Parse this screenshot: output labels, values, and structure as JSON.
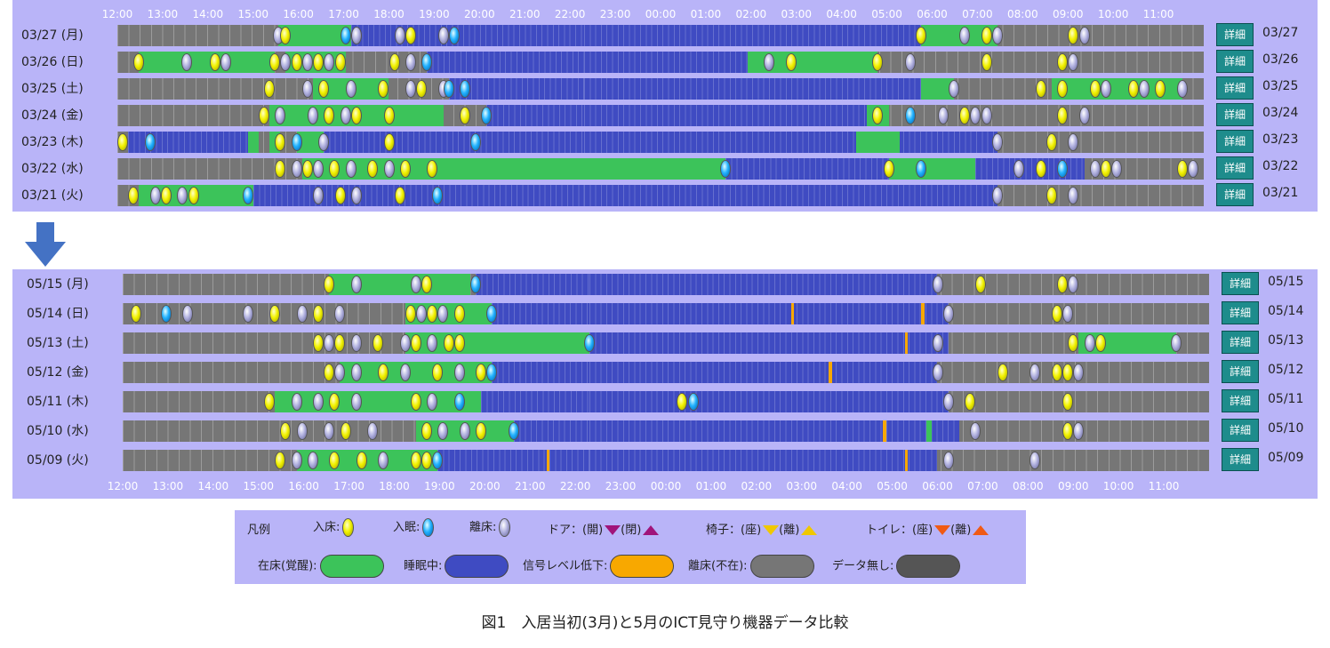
{
  "hours": [
    "12:00",
    "13:00",
    "14:00",
    "15:00",
    "16:00",
    "17:00",
    "18:00",
    "19:00",
    "20:00",
    "21:00",
    "22:00",
    "23:00",
    "00:00",
    "01:00",
    "02:00",
    "03:00",
    "04:00",
    "05:00",
    "06:00",
    "07:00",
    "08:00",
    "09:00",
    "10:00",
    "11:00"
  ],
  "detail_label": "詳細",
  "legend": {
    "title": "凡例",
    "enter": "入床:",
    "sleep": "入眠:",
    "leave": "離床:",
    "door": "ドア：(開)",
    "door_close": "(閉)",
    "chair": "椅子：(座)",
    "chair_leave": "(離)",
    "toilet": "トイレ：(座)",
    "toilet_leave": "(離)",
    "awake": "在床(覚醒):",
    "sleeping": "睡眠中:",
    "signal": "信号レベル低下:",
    "absent": "離床(不在):",
    "nodata": "データ無し:"
  },
  "caption": "図1　入居当初(3月)と5月のICT見守り機器データ比較",
  "colors": {
    "panel": "#b9b4f8",
    "awake": "#3cc35a",
    "sleep": "#3f4bc2",
    "signal": "#f8a800",
    "absent": "#767676",
    "nodata": "#555555",
    "door": "#a0147a",
    "chair": "#f0c800",
    "toilet": "#f05a14",
    "detail": "#1e8c8c",
    "arrow": "#4472c4"
  },
  "march": [
    {
      "label": "03/27 (月)",
      "date": "03/27",
      "segs": [
        [
          "g",
          0.148,
          0.215
        ],
        [
          "b",
          0.215,
          0.43
        ],
        [
          "b",
          0.43,
          0.74
        ],
        [
          "g",
          0.74,
          0.81
        ]
      ],
      "marks": [
        [
          "leave",
          0.148
        ],
        [
          "enter",
          0.155
        ],
        [
          "sleep",
          0.21
        ],
        [
          "leave",
          0.22
        ],
        [
          "leave",
          0.26
        ],
        [
          "enter",
          0.27
        ],
        [
          "leave",
          0.3
        ],
        [
          "sleep",
          0.31
        ],
        [
          "enter",
          0.74
        ],
        [
          "leave",
          0.78
        ],
        [
          "enter",
          0.8
        ],
        [
          "leave",
          0.81
        ],
        [
          "enter",
          0.88
        ],
        [
          "leave",
          0.89
        ]
      ]
    },
    {
      "label": "03/26 (日)",
      "date": "03/26",
      "segs": [
        [
          "g",
          0.02,
          0.145
        ],
        [
          "g",
          0.155,
          0.21
        ],
        [
          "b",
          0.285,
          0.43
        ],
        [
          "b",
          0.43,
          0.58
        ],
        [
          "g",
          0.58,
          0.7
        ]
      ],
      "marks": [
        [
          "enter",
          0.02
        ],
        [
          "leave",
          0.064
        ],
        [
          "enter",
          0.09
        ],
        [
          "leave",
          0.1
        ],
        [
          "enter",
          0.145
        ],
        [
          "leave",
          0.155
        ],
        [
          "enter",
          0.165
        ],
        [
          "leave",
          0.175
        ],
        [
          "enter",
          0.185
        ],
        [
          "leave",
          0.195
        ],
        [
          "enter",
          0.205
        ],
        [
          "enter",
          0.255
        ],
        [
          "leave",
          0.27
        ],
        [
          "sleep",
          0.285
        ],
        [
          "leave",
          0.6
        ],
        [
          "enter",
          0.62
        ],
        [
          "enter",
          0.7
        ],
        [
          "leave",
          0.73
        ],
        [
          "enter",
          0.8
        ],
        [
          "enter",
          0.87
        ],
        [
          "leave",
          0.88
        ]
      ]
    },
    {
      "label": "03/25 (土)",
      "date": "03/25",
      "segs": [
        [
          "g",
          0.18,
          0.25
        ],
        [
          "b",
          0.305,
          0.43
        ],
        [
          "b",
          0.43,
          0.74
        ],
        [
          "g",
          0.74,
          0.77
        ],
        [
          "g",
          0.86,
          0.98
        ]
      ],
      "marks": [
        [
          "enter",
          0.14
        ],
        [
          "leave",
          0.175
        ],
        [
          "enter",
          0.19
        ],
        [
          "leave",
          0.215
        ],
        [
          "enter",
          0.245
        ],
        [
          "leave",
          0.27
        ],
        [
          "enter",
          0.28
        ],
        [
          "leave",
          0.3
        ],
        [
          "sleep",
          0.305
        ],
        [
          "sleep",
          0.32
        ],
        [
          "leave",
          0.77
        ],
        [
          "enter",
          0.85
        ],
        [
          "enter",
          0.87
        ],
        [
          "enter",
          0.9
        ],
        [
          "leave",
          0.91
        ],
        [
          "enter",
          0.935
        ],
        [
          "leave",
          0.945
        ],
        [
          "enter",
          0.96
        ],
        [
          "leave",
          0.98
        ]
      ]
    },
    {
      "label": "03/24 (金)",
      "date": "03/24",
      "segs": [
        [
          "g",
          0.14,
          0.3
        ],
        [
          "b",
          0.34,
          0.43
        ],
        [
          "b",
          0.43,
          0.69
        ],
        [
          "g",
          0.69,
          0.71
        ]
      ],
      "marks": [
        [
          "enter",
          0.135
        ],
        [
          "leave",
          0.15
        ],
        [
          "leave",
          0.18
        ],
        [
          "enter",
          0.195
        ],
        [
          "leave",
          0.21
        ],
        [
          "enter",
          0.22
        ],
        [
          "enter",
          0.25
        ],
        [
          "enter",
          0.32
        ],
        [
          "sleep",
          0.34
        ],
        [
          "enter",
          0.7
        ],
        [
          "sleep",
          0.73
        ],
        [
          "leave",
          0.76
        ],
        [
          "enter",
          0.78
        ],
        [
          "leave",
          0.79
        ],
        [
          "leave",
          0.8
        ],
        [
          "enter",
          0.87
        ],
        [
          "leave",
          0.89
        ]
      ]
    },
    {
      "label": "03/23 (木)",
      "date": "03/23",
      "segs": [
        [
          "b",
          0.01,
          0.12
        ],
        [
          "g",
          0.12,
          0.13
        ],
        [
          "g",
          0.14,
          0.15
        ],
        [
          "g",
          0.165,
          0.19
        ],
        [
          "b",
          0.19,
          0.43
        ],
        [
          "b",
          0.43,
          0.81
        ],
        [
          "g",
          0.68,
          0.72
        ]
      ],
      "marks": [
        [
          "enter",
          0.005
        ],
        [
          "sleep",
          0.03
        ],
        [
          "enter",
          0.15
        ],
        [
          "sleep",
          0.165
        ],
        [
          "leave",
          0.19
        ],
        [
          "enter",
          0.25
        ],
        [
          "sleep",
          0.33
        ],
        [
          "leave",
          0.81
        ],
        [
          "enter",
          0.86
        ],
        [
          "leave",
          0.88
        ]
      ]
    },
    {
      "label": "03/22 (水)",
      "date": "03/22",
      "segs": [
        [
          "g",
          0.17,
          0.43
        ],
        [
          "g",
          0.43,
          0.56
        ],
        [
          "b",
          0.56,
          0.71
        ],
        [
          "g",
          0.71,
          0.79
        ],
        [
          "b",
          0.79,
          0.89
        ]
      ],
      "marks": [
        [
          "enter",
          0.15
        ],
        [
          "leave",
          0.165
        ],
        [
          "enter",
          0.175
        ],
        [
          "leave",
          0.185
        ],
        [
          "enter",
          0.2
        ],
        [
          "leave",
          0.215
        ],
        [
          "enter",
          0.235
        ],
        [
          "leave",
          0.25
        ],
        [
          "enter",
          0.265
        ],
        [
          "enter",
          0.29
        ],
        [
          "sleep",
          0.56
        ],
        [
          "enter",
          0.71
        ],
        [
          "sleep",
          0.74
        ],
        [
          "leave",
          0.83
        ],
        [
          "enter",
          0.85
        ],
        [
          "sleep",
          0.87
        ],
        [
          "leave",
          0.9
        ],
        [
          "enter",
          0.91
        ],
        [
          "leave",
          0.92
        ],
        [
          "enter",
          0.98
        ],
        [
          "leave",
          0.99
        ]
      ]
    },
    {
      "label": "03/21 (火)",
      "date": "03/21",
      "segs": [
        [
          "g",
          0.02,
          0.125
        ],
        [
          "b",
          0.125,
          0.43
        ],
        [
          "b",
          0.43,
          0.81
        ]
      ],
      "marks": [
        [
          "enter",
          0.015
        ],
        [
          "leave",
          0.035
        ],
        [
          "enter",
          0.045
        ],
        [
          "leave",
          0.06
        ],
        [
          "enter",
          0.07
        ],
        [
          "sleep",
          0.12
        ],
        [
          "leave",
          0.185
        ],
        [
          "enter",
          0.205
        ],
        [
          "leave",
          0.22
        ],
        [
          "enter",
          0.26
        ],
        [
          "sleep",
          0.295
        ],
        [
          "leave",
          0.81
        ],
        [
          "enter",
          0.86
        ],
        [
          "leave",
          0.88
        ]
      ]
    }
  ],
  "may": [
    {
      "label": "05/15 (月)",
      "date": "05/15",
      "segs": [
        [
          "g",
          0.19,
          0.32
        ],
        [
          "b",
          0.325,
          0.43
        ],
        [
          "b",
          0.43,
          0.75
        ]
      ],
      "marks": [
        [
          "enter",
          0.19
        ],
        [
          "leave",
          0.215
        ],
        [
          "leave",
          0.27
        ],
        [
          "enter",
          0.28
        ],
        [
          "sleep",
          0.325
        ],
        [
          "leave",
          0.75
        ],
        [
          "enter",
          0.79
        ],
        [
          "enter",
          0.865
        ],
        [
          "leave",
          0.875
        ]
      ]
    },
    {
      "label": "05/14 (日)",
      "date": "05/14",
      "segs": [
        [
          "g",
          0.26,
          0.34
        ],
        [
          "b",
          0.34,
          0.43
        ],
        [
          "b",
          0.43,
          0.76
        ],
        [
          "o",
          0.615,
          0.618
        ],
        [
          "o",
          0.735,
          0.738
        ]
      ],
      "marks": [
        [
          "enter",
          0.012
        ],
        [
          "sleep",
          0.04
        ],
        [
          "leave",
          0.06
        ],
        [
          "leave",
          0.115
        ],
        [
          "enter",
          0.14
        ],
        [
          "leave",
          0.165
        ],
        [
          "enter",
          0.18
        ],
        [
          "leave",
          0.2
        ],
        [
          "enter",
          0.265
        ],
        [
          "leave",
          0.275
        ],
        [
          "enter",
          0.285
        ],
        [
          "leave",
          0.295
        ],
        [
          "enter",
          0.31
        ],
        [
          "sleep",
          0.34
        ],
        [
          "leave",
          0.76
        ],
        [
          "enter",
          0.86
        ],
        [
          "leave",
          0.87
        ]
      ]
    },
    {
      "label": "05/13 (土)",
      "date": "05/13",
      "segs": [
        [
          "g",
          0.26,
          0.43
        ],
        [
          "b",
          0.43,
          0.76
        ],
        [
          "o",
          0.72,
          0.723
        ],
        [
          "g",
          0.88,
          0.97
        ]
      ],
      "marks": [
        [
          "enter",
          0.18
        ],
        [
          "leave",
          0.19
        ],
        [
          "enter",
          0.2
        ],
        [
          "leave",
          0.215
        ],
        [
          "enter",
          0.235
        ],
        [
          "leave",
          0.26
        ],
        [
          "enter",
          0.27
        ],
        [
          "leave",
          0.285
        ],
        [
          "enter",
          0.3
        ],
        [
          "enter",
          0.31
        ],
        [
          "sleep",
          0.43
        ],
        [
          "leave",
          0.75
        ],
        [
          "enter",
          0.875
        ],
        [
          "leave",
          0.89
        ],
        [
          "enter",
          0.9
        ],
        [
          "leave",
          0.97
        ]
      ]
    },
    {
      "label": "05/12 (金)",
      "date": "05/12",
      "segs": [
        [
          "g",
          0.2,
          0.34
        ],
        [
          "b",
          0.34,
          0.43
        ],
        [
          "b",
          0.43,
          0.75
        ],
        [
          "o",
          0.65,
          0.653
        ]
      ],
      "marks": [
        [
          "enter",
          0.19
        ],
        [
          "leave",
          0.2
        ],
        [
          "leave",
          0.215
        ],
        [
          "enter",
          0.24
        ],
        [
          "leave",
          0.26
        ],
        [
          "enter",
          0.29
        ],
        [
          "leave",
          0.31
        ],
        [
          "enter",
          0.33
        ],
        [
          "sleep",
          0.34
        ],
        [
          "leave",
          0.75
        ],
        [
          "enter",
          0.81
        ],
        [
          "leave",
          0.84
        ],
        [
          "enter",
          0.86
        ],
        [
          "enter",
          0.87
        ],
        [
          "leave",
          0.88
        ]
      ]
    },
    {
      "label": "05/11 (木)",
      "date": "05/11",
      "segs": [
        [
          "g",
          0.14,
          0.33
        ],
        [
          "b",
          0.33,
          0.43
        ],
        [
          "b",
          0.43,
          0.76
        ]
      ],
      "marks": [
        [
          "enter",
          0.135
        ],
        [
          "leave",
          0.16
        ],
        [
          "leave",
          0.18
        ],
        [
          "enter",
          0.195
        ],
        [
          "leave",
          0.215
        ],
        [
          "enter",
          0.27
        ],
        [
          "leave",
          0.285
        ],
        [
          "sleep",
          0.31
        ],
        [
          "enter",
          0.515
        ],
        [
          "sleep",
          0.525
        ],
        [
          "leave",
          0.76
        ],
        [
          "enter",
          0.78
        ],
        [
          "enter",
          0.87
        ]
      ]
    },
    {
      "label": "05/10 (水)",
      "date": "05/10",
      "segs": [
        [
          "g",
          0.27,
          0.36
        ],
        [
          "b",
          0.36,
          0.43
        ],
        [
          "b",
          0.43,
          0.77
        ],
        [
          "o",
          0.7,
          0.703
        ],
        [
          "g",
          0.74,
          0.745
        ]
      ],
      "marks": [
        [
          "enter",
          0.15
        ],
        [
          "leave",
          0.165
        ],
        [
          "leave",
          0.19
        ],
        [
          "enter",
          0.205
        ],
        [
          "leave",
          0.23
        ],
        [
          "enter",
          0.28
        ],
        [
          "leave",
          0.295
        ],
        [
          "leave",
          0.315
        ],
        [
          "enter",
          0.33
        ],
        [
          "sleep",
          0.36
        ],
        [
          "leave",
          0.785
        ],
        [
          "enter",
          0.87
        ],
        [
          "leave",
          0.88
        ]
      ]
    },
    {
      "label": "05/09 (火)",
      "date": "05/09",
      "segs": [
        [
          "g",
          0.16,
          0.29
        ],
        [
          "b",
          0.29,
          0.43
        ],
        [
          "b",
          0.43,
          0.75
        ],
        [
          "o",
          0.39,
          0.393
        ],
        [
          "o",
          0.72,
          0.723
        ]
      ],
      "marks": [
        [
          "enter",
          0.145
        ],
        [
          "leave",
          0.16
        ],
        [
          "leave",
          0.175
        ],
        [
          "enter",
          0.195
        ],
        [
          "enter",
          0.22
        ],
        [
          "leave",
          0.24
        ],
        [
          "enter",
          0.27
        ],
        [
          "enter",
          0.28
        ],
        [
          "sleep",
          0.29
        ],
        [
          "leave",
          0.76
        ],
        [
          "leave",
          0.84
        ]
      ]
    }
  ]
}
